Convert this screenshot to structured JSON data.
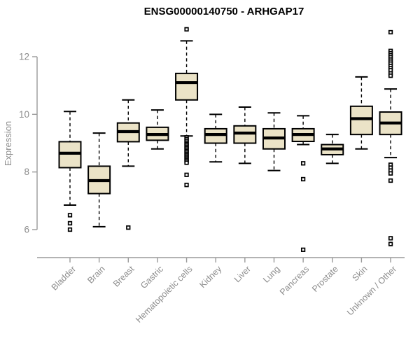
{
  "title": "ENSG00000140750 - ARHGAP17",
  "chart_data": {
    "type": "boxplot",
    "title": "ENSG00000140750 - ARHGAP17",
    "xlabel": "",
    "ylabel": "Expression",
    "y_ticks": [
      6,
      8,
      10,
      12
    ],
    "y_axis_range": [
      6,
      12
    ],
    "grid": false,
    "legend": "none",
    "categories": [
      "Bladder",
      "Brain",
      "Breast",
      "Gastric",
      "Hematopoietic cells",
      "Kidney",
      "Liver",
      "Lung",
      "Pancreas",
      "Prostate",
      "Skin",
      "Unknown / Other"
    ],
    "boxes": [
      {
        "label": "Bladder",
        "whisker_low": 6.85,
        "q1": 8.15,
        "median": 8.65,
        "q3": 9.05,
        "whisker_high": 10.1,
        "outliers": [
          6.5,
          6.22,
          6.0
        ]
      },
      {
        "label": "Brain",
        "whisker_low": 6.1,
        "q1": 7.25,
        "median": 7.7,
        "q3": 8.2,
        "whisker_high": 9.35,
        "outliers": []
      },
      {
        "label": "Breast",
        "whisker_low": 8.2,
        "q1": 9.05,
        "median": 9.4,
        "q3": 9.7,
        "whisker_high": 10.5,
        "outliers": [
          6.07
        ]
      },
      {
        "label": "Gastric",
        "whisker_low": 8.8,
        "q1": 9.1,
        "median": 9.3,
        "q3": 9.55,
        "whisker_high": 10.15,
        "outliers": []
      },
      {
        "label": "Hematopoietic cells",
        "whisker_low": 9.25,
        "q1": 10.5,
        "median": 11.1,
        "q3": 11.42,
        "whisker_high": 12.55,
        "outliers": [
          12.95,
          9.2,
          9.14,
          9.08,
          9.02,
          8.97,
          8.92,
          8.87,
          8.82,
          8.77,
          8.72,
          8.67,
          8.62,
          8.57,
          8.52,
          8.47,
          8.42,
          8.37,
          8.32,
          7.9,
          7.55
        ]
      },
      {
        "label": "Kidney",
        "whisker_low": 8.35,
        "q1": 9.0,
        "median": 9.3,
        "q3": 9.5,
        "whisker_high": 10.0,
        "outliers": []
      },
      {
        "label": "Liver",
        "whisker_low": 8.3,
        "q1": 9.0,
        "median": 9.35,
        "q3": 9.6,
        "whisker_high": 10.25,
        "outliers": []
      },
      {
        "label": "Lung",
        "whisker_low": 8.05,
        "q1": 8.8,
        "median": 9.18,
        "q3": 9.5,
        "whisker_high": 10.05,
        "outliers": []
      },
      {
        "label": "Pancreas",
        "whisker_low": 8.95,
        "q1": 9.06,
        "median": 9.3,
        "q3": 9.5,
        "whisker_high": 9.95,
        "outliers": [
          8.3,
          7.75,
          5.3
        ]
      },
      {
        "label": "Prostate",
        "whisker_low": 8.3,
        "q1": 8.6,
        "median": 8.8,
        "q3": 8.95,
        "whisker_high": 9.3,
        "outliers": []
      },
      {
        "label": "Skin",
        "whisker_low": 8.8,
        "q1": 9.3,
        "median": 9.85,
        "q3": 10.28,
        "whisker_high": 11.3,
        "outliers": []
      },
      {
        "label": "Unknown / Other",
        "whisker_low": 8.5,
        "q1": 9.3,
        "median": 9.7,
        "q3": 10.08,
        "whisker_high": 10.88,
        "outliers": [
          12.85,
          12.2,
          12.12,
          12.05,
          11.98,
          11.9,
          11.83,
          11.76,
          11.68,
          11.6,
          11.53,
          11.42,
          11.34,
          8.25,
          8.15,
          8.05,
          7.95,
          7.7,
          5.7,
          5.5
        ]
      }
    ],
    "colors": {
      "box_fill": "#EBE3C7",
      "box_border": "#000000",
      "median": "#000000",
      "whisker": "#000000",
      "outlier": "#000000",
      "axis_line": "#9a9a9a",
      "tick_text": "#8c8c8c",
      "title": "#000000"
    }
  }
}
